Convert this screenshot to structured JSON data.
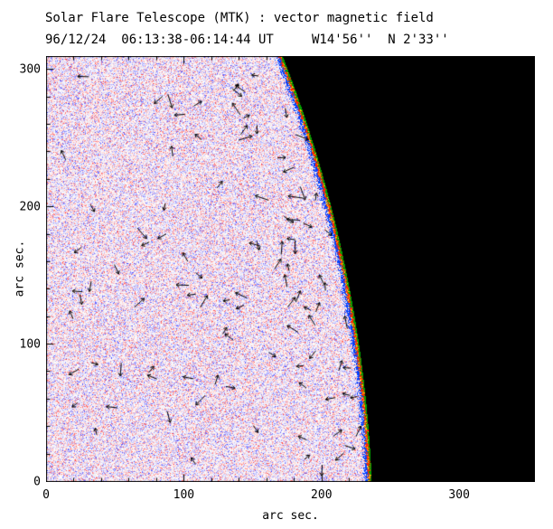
{
  "header": {
    "title": "Solar Flare Telescope (MTK) : vector magnetic field",
    "subtitle": "96/12/24  06:13:38-06:14:44 UT     W14'56''  N 2'33''"
  },
  "chart_data": {
    "type": "heatmap",
    "title": "Solar Flare Telescope (MTK) : vector magnetic field",
    "subtitle": "96/12/24  06:13:38-06:14:44 UT     W14'56''  N 2'33''",
    "xlabel": "arc sec.",
    "ylabel": "arc sec.",
    "xlim": [
      0,
      355
    ],
    "ylim": [
      0,
      310
    ],
    "xticks": [
      0,
      100,
      200,
      300
    ],
    "yticks": [
      0,
      100,
      200,
      300
    ],
    "minor_tick_step": 20,
    "description": "Speckled red/blue vector magnetogram of the solar west limb. Black sky beyond the curved limb on the right; a green/red/yellow/blue contour fringe traces the limb edge; small black arrows mark transverse magnetic field vectors scattered over the disk.",
    "limb": {
      "center_arcsec": [
        -723,
        -39
      ],
      "radius_arcsec": 960
    },
    "colors": {
      "sky": "#000000",
      "frame": "#000000",
      "fringe_green": "#00a000",
      "fringe_red": "#ff2800",
      "fringe_yellow": "#ffd000",
      "fringe_blue": "#0040ff"
    },
    "arrows": {
      "count": 100,
      "color": "#000000"
    },
    "noise_seed": 987123
  }
}
